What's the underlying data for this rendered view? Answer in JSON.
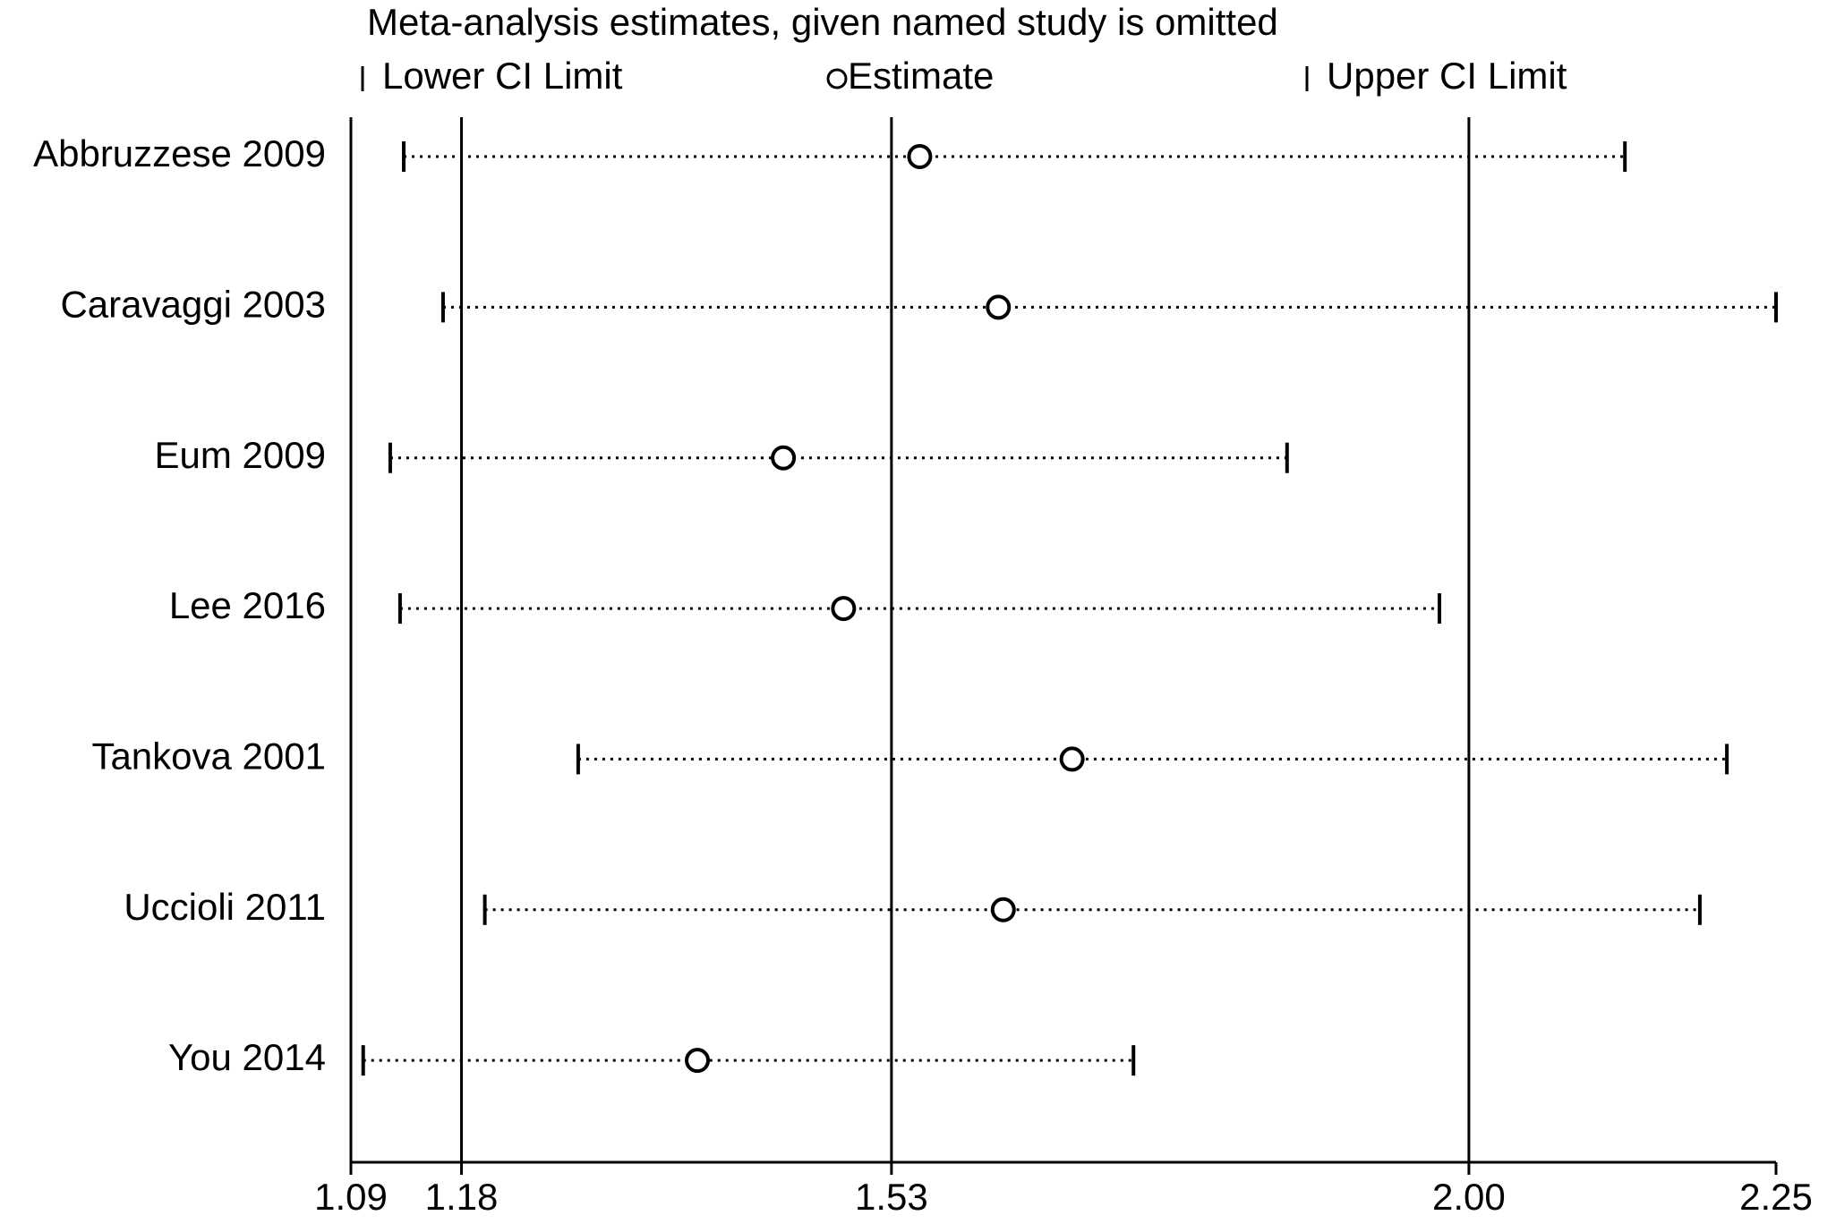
{
  "chart_data": {
    "type": "sensitivity",
    "title": "Meta-analysis estimates, given named study is omitted",
    "categories": [
      "Abbruzzese 2009",
      "Caravaggi 2003",
      "Eum 2009",
      "Lee 2016",
      "Tankova 2001",
      "Uccioli 2011",
      "You 2014"
    ],
    "series": [
      {
        "name": "Lower CI Limit",
        "color": "#000000",
        "values": [
          1.133,
          1.165,
          1.122,
          1.13,
          1.275,
          1.199,
          1.1
        ]
      },
      {
        "name": "Estimate",
        "color": "#000000",
        "values": [
          1.553,
          1.617,
          1.442,
          1.491,
          1.677,
          1.621,
          1.372
        ]
      },
      {
        "name": "Upper CI Limit",
        "color": "#000000",
        "values": [
          2.127,
          2.25,
          1.852,
          1.976,
          2.21,
          2.188,
          1.727
        ]
      }
    ],
    "xlim": [
      1.09,
      2.25
    ],
    "xticks": [
      1.09,
      1.18,
      1.53,
      {
        "value": 2,
        "label": "2.00"
      },
      2.25
    ],
    "reference_lines": [
      1.18,
      1.53,
      2
    ]
  }
}
